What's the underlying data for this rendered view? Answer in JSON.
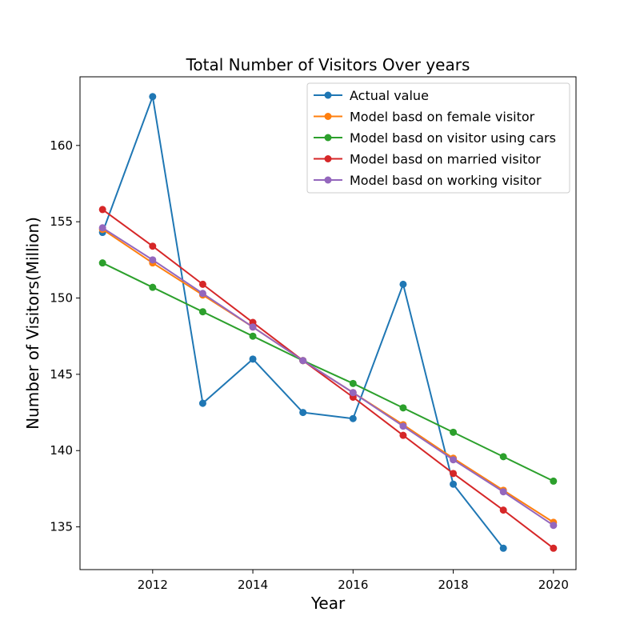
{
  "chart_data": {
    "type": "line",
    "title": "Total Number of Visitors Over years",
    "xlabel": "Year",
    "ylabel": "Number of Visitors(Million)",
    "xlim": [
      2010.55,
      2020.45
    ],
    "ylim": [
      132.2,
      164.5
    ],
    "xticks": [
      2012,
      2014,
      2016,
      2018,
      2020
    ],
    "yticks": [
      135,
      140,
      145,
      150,
      155,
      160
    ],
    "grid": false,
    "legend_position": "top-right",
    "series": [
      {
        "name": "Actual value",
        "color": "#1f77b4",
        "x": [
          2011,
          2012,
          2013,
          2014,
          2015,
          2016,
          2017,
          2018,
          2019
        ],
        "y": [
          154.3,
          163.2,
          143.1,
          146.0,
          142.5,
          142.1,
          150.9,
          137.8,
          133.6
        ]
      },
      {
        "name": "Model basd on female visitor",
        "color": "#ff7f0e",
        "x": [
          2011,
          2012,
          2013,
          2014,
          2015,
          2016,
          2017,
          2018,
          2019,
          2020
        ],
        "y": [
          154.5,
          152.3,
          150.2,
          148.1,
          145.9,
          143.8,
          141.7,
          139.5,
          137.4,
          135.3
        ]
      },
      {
        "name": "Model basd on visitor using cars",
        "color": "#2ca02c",
        "x": [
          2011,
          2012,
          2013,
          2014,
          2015,
          2016,
          2017,
          2018,
          2019,
          2020
        ],
        "y": [
          152.3,
          150.7,
          149.1,
          147.5,
          145.9,
          144.4,
          142.8,
          141.2,
          139.6,
          138.0
        ]
      },
      {
        "name": "Model basd on married visitor",
        "color": "#d62728",
        "x": [
          2011,
          2012,
          2013,
          2014,
          2015,
          2016,
          2017,
          2018,
          2019,
          2020
        ],
        "y": [
          155.8,
          153.4,
          150.9,
          148.4,
          145.9,
          143.5,
          141.0,
          138.5,
          136.1,
          133.6
        ]
      },
      {
        "name": "Model basd on working visitor",
        "color": "#9467bd",
        "x": [
          2011,
          2012,
          2013,
          2014,
          2015,
          2016,
          2017,
          2018,
          2019,
          2020
        ],
        "y": [
          154.6,
          152.5,
          150.3,
          148.1,
          145.9,
          143.8,
          141.6,
          139.4,
          137.3,
          135.1
        ]
      }
    ]
  }
}
